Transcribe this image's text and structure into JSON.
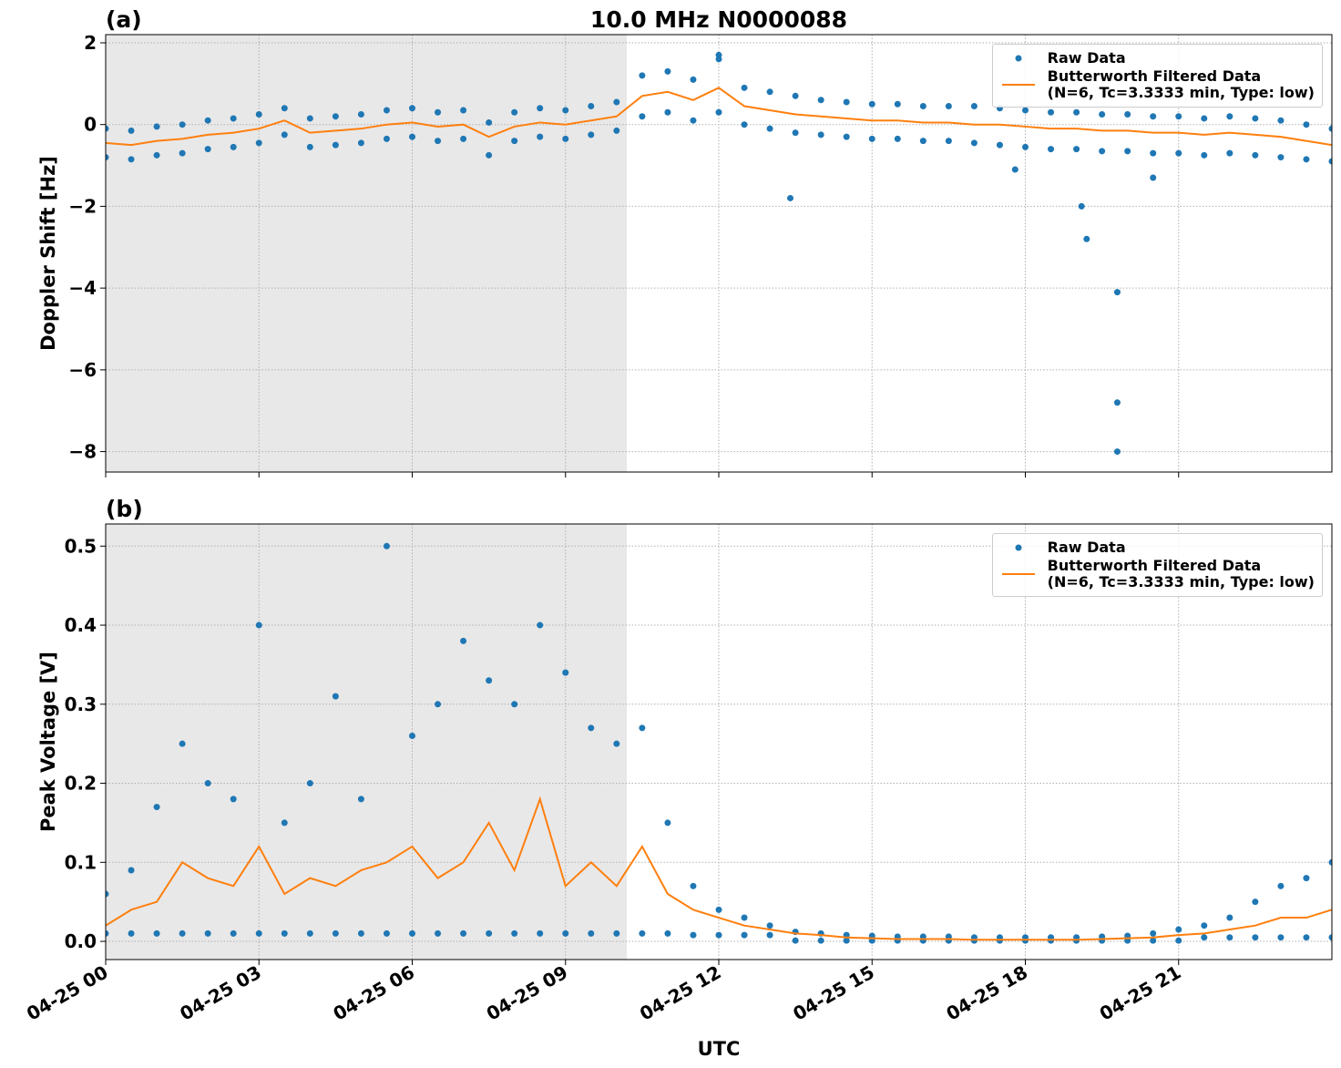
{
  "chart_data": [
    {
      "type": "scatter",
      "title": "10.0 MHz N0000088",
      "panel_label": "(a)",
      "ylabel": "Doppler Shift [Hz]",
      "xlim": [
        0,
        24
      ],
      "xticks": [
        0,
        3,
        6,
        9,
        12,
        15,
        18,
        21
      ],
      "ylim": [
        -8.5,
        2.2
      ],
      "yticks": [
        {
          "value": -8,
          "label": "−8"
        },
        {
          "value": -6,
          "label": "−6"
        },
        {
          "value": -4,
          "label": "−4"
        },
        {
          "value": -2,
          "label": "−2"
        },
        0,
        2
      ],
      "grid": true,
      "shade_xlim": [
        0,
        10.2
      ],
      "legend": "upper right",
      "series": [
        {
          "name": "Raw Data",
          "mode": "markers",
          "color": "#1f77b4",
          "x": [
            0,
            0.5,
            1,
            1.5,
            2,
            2.5,
            3,
            3.5,
            4,
            4.5,
            5,
            5.5,
            6,
            6.5,
            7,
            7.5,
            8,
            8.5,
            9,
            9.5,
            10,
            10.5,
            11,
            11.5,
            12,
            12.5,
            13,
            13.5,
            14,
            14.5,
            15,
            15.5,
            16,
            16.5,
            17,
            17.5,
            18,
            18.5,
            19,
            19.5,
            20,
            20.5,
            21,
            21.5,
            22,
            22.5,
            23,
            23.5,
            24,
            0,
            0.5,
            1,
            1.5,
            2,
            2.5,
            3,
            3.5,
            4,
            4.5,
            5,
            5.5,
            6,
            6.5,
            7,
            7.5,
            8,
            8.5,
            9,
            9.5,
            10,
            10.5,
            11,
            11.5,
            12,
            12.5,
            13,
            13.5,
            14,
            14.5,
            15,
            15.5,
            16,
            16.5,
            17,
            17.5,
            18,
            18.5,
            19,
            19.5,
            20,
            20.5,
            21,
            21.5,
            22,
            22.5,
            23,
            23.5,
            24,
            13.4,
            19.2,
            19.8,
            19.8,
            19.8,
            19.1,
            17.8,
            20.5,
            12.0
          ],
          "values": [
            -0.1,
            -0.15,
            -0.05,
            0,
            0.1,
            0.15,
            0.25,
            0.4,
            0.15,
            0.2,
            0.25,
            0.35,
            0.4,
            0.3,
            0.35,
            0.05,
            0.3,
            0.4,
            0.35,
            0.45,
            0.55,
            1.2,
            1.3,
            1.1,
            1.6,
            0.9,
            0.8,
            0.7,
            0.6,
            0.55,
            0.5,
            0.5,
            0.45,
            0.45,
            0.45,
            0.4,
            0.35,
            0.3,
            0.3,
            0.25,
            0.25,
            0.2,
            0.2,
            0.15,
            0.2,
            0.15,
            0.1,
            0,
            -0.1,
            -0.8,
            -0.85,
            -0.75,
            -0.7,
            -0.6,
            -0.55,
            -0.45,
            -0.25,
            -0.55,
            -0.5,
            -0.45,
            -0.35,
            -0.3,
            -0.4,
            -0.35,
            -0.75,
            -0.4,
            -0.3,
            -0.35,
            -0.25,
            -0.15,
            0.2,
            0.3,
            0.1,
            0.3,
            0,
            -0.1,
            -0.2,
            -0.25,
            -0.3,
            -0.35,
            -0.35,
            -0.4,
            -0.4,
            -0.45,
            -0.5,
            -0.55,
            -0.6,
            -0.6,
            -0.65,
            -0.65,
            -0.7,
            -0.7,
            -0.75,
            -0.7,
            -0.75,
            -0.8,
            -0.85,
            -0.9,
            -1.8,
            -2.8,
            -4.1,
            -6.8,
            -8.0,
            -2.0,
            -1.1,
            -1.3,
            1.7
          ]
        },
        {
          "name": "Butterworth Filtered Data\n(N=6, Tc=3.3333 min, Type: low)",
          "mode": "line",
          "color": "#ff7f0e",
          "x": [
            0,
            0.5,
            1,
            1.5,
            2,
            2.5,
            3,
            3.5,
            4,
            4.5,
            5,
            5.5,
            6,
            6.5,
            7,
            7.5,
            8,
            8.5,
            9,
            9.5,
            10,
            10.5,
            11,
            11.5,
            12,
            12.5,
            13,
            13.5,
            14,
            14.5,
            15,
            15.5,
            16,
            16.5,
            17,
            17.5,
            18,
            18.5,
            19,
            19.5,
            20,
            20.5,
            21,
            21.5,
            22,
            22.5,
            23,
            23.5,
            24
          ],
          "values": [
            -0.45,
            -0.5,
            -0.4,
            -0.35,
            -0.25,
            -0.2,
            -0.1,
            0.1,
            -0.2,
            -0.15,
            -0.1,
            0.0,
            0.05,
            -0.05,
            0.0,
            -0.3,
            -0.05,
            0.05,
            0.0,
            0.1,
            0.2,
            0.7,
            0.8,
            0.6,
            0.9,
            0.45,
            0.35,
            0.25,
            0.2,
            0.15,
            0.1,
            0.1,
            0.05,
            0.05,
            0.0,
            0.0,
            -0.05,
            -0.1,
            -0.1,
            -0.15,
            -0.15,
            -0.2,
            -0.2,
            -0.25,
            -0.2,
            -0.25,
            -0.3,
            -0.4,
            -0.5
          ]
        }
      ]
    },
    {
      "type": "scatter",
      "panel_label": "(b)",
      "ylabel": "Peak Voltage [V]",
      "xlabel": "UTC",
      "xlim": [
        0,
        24
      ],
      "xticks": [
        {
          "value": 0,
          "label": "04-25 00"
        },
        {
          "value": 3,
          "label": "04-25 03"
        },
        {
          "value": 6,
          "label": "04-25 06"
        },
        {
          "value": 9,
          "label": "04-25 09"
        },
        {
          "value": 12,
          "label": "04-25 12"
        },
        {
          "value": 15,
          "label": "04-25 15"
        },
        {
          "value": 18,
          "label": "04-25 18"
        },
        {
          "value": 21,
          "label": "04-25 21"
        }
      ],
      "ylim": [
        -0.023,
        0.528
      ],
      "yticks": [
        {
          "value": 0,
          "label": "0.0"
        },
        0.1,
        0.2,
        0.3,
        0.4,
        0.5
      ],
      "grid": true,
      "shade_xlim": [
        0,
        10.2
      ],
      "legend": "upper right",
      "series": [
        {
          "name": "Raw Data",
          "mode": "markers",
          "color": "#1f77b4",
          "x": [
            0,
            0.5,
            1,
            1.5,
            2,
            2.5,
            3,
            3.5,
            4,
            4.5,
            5,
            5.5,
            6,
            6.5,
            7,
            7.5,
            8,
            8.5,
            9,
            9.5,
            10,
            10.5,
            11,
            11.5,
            12,
            12.5,
            13,
            13.5,
            14,
            14.5,
            15,
            15.5,
            16,
            16.5,
            17,
            17.5,
            18,
            18.5,
            19,
            19.5,
            20,
            20.5,
            21,
            21.5,
            22,
            22.5,
            23,
            23.5,
            24,
            0,
            0.5,
            1,
            1.5,
            2,
            2.5,
            3,
            3.5,
            4,
            4.5,
            5,
            5.5,
            6,
            6.5,
            7,
            7.5,
            8,
            8.5,
            9,
            9.5,
            10,
            10.5,
            11,
            11.5,
            12,
            12.5,
            13,
            13.5,
            14,
            14.5,
            15,
            15.5,
            16,
            16.5,
            17,
            17.5,
            18,
            18.5,
            19,
            19.5,
            20,
            20.5,
            21,
            21.5,
            22,
            22.5,
            23,
            23.5,
            24
          ],
          "values": [
            0.06,
            0.09,
            0.17,
            0.25,
            0.2,
            0.18,
            0.4,
            0.15,
            0.2,
            0.31,
            0.18,
            0.5,
            0.26,
            0.3,
            0.38,
            0.33,
            0.3,
            0.4,
            0.34,
            0.27,
            0.25,
            0.27,
            0.15,
            0.07,
            0.04,
            0.03,
            0.02,
            0.012,
            0.01,
            0.008,
            0.007,
            0.006,
            0.006,
            0.006,
            0.005,
            0.005,
            0.005,
            0.005,
            0.005,
            0.006,
            0.007,
            0.01,
            0.015,
            0.02,
            0.03,
            0.05,
            0.07,
            0.08,
            0.1,
            0.01,
            0.01,
            0.01,
            0.01,
            0.01,
            0.01,
            0.01,
            0.01,
            0.01,
            0.01,
            0.01,
            0.01,
            0.01,
            0.01,
            0.01,
            0.01,
            0.01,
            0.01,
            0.01,
            0.01,
            0.01,
            0.01,
            0.01,
            0.008,
            0.008,
            0.008,
            0.008,
            0.001,
            0.001,
            0.001,
            0.001,
            0.001,
            0.001,
            0.001,
            0.001,
            0.001,
            0.001,
            0.001,
            0.001,
            0.001,
            0.001,
            0.001,
            0.001,
            0.005,
            0.005,
            0.005,
            0.005,
            0.005,
            0.005
          ]
        },
        {
          "name": "Butterworth Filtered Data\n(N=6, Tc=3.3333 min, Type: low)",
          "mode": "line",
          "color": "#ff7f0e",
          "x": [
            0,
            0.5,
            1,
            1.5,
            2,
            2.5,
            3,
            3.5,
            4,
            4.5,
            5,
            5.5,
            6,
            6.5,
            7,
            7.5,
            8,
            8.5,
            9,
            9.5,
            10,
            10.5,
            11,
            11.5,
            12,
            12.5,
            13,
            13.5,
            14,
            14.5,
            15,
            15.5,
            16,
            16.5,
            17,
            17.5,
            18,
            18.5,
            19,
            19.5,
            20,
            20.5,
            21,
            21.5,
            22,
            22.5,
            23,
            23.5,
            24
          ],
          "values": [
            0.02,
            0.04,
            0.05,
            0.1,
            0.08,
            0.07,
            0.12,
            0.06,
            0.08,
            0.07,
            0.09,
            0.1,
            0.12,
            0.08,
            0.1,
            0.15,
            0.09,
            0.18,
            0.07,
            0.1,
            0.07,
            0.12,
            0.06,
            0.04,
            0.03,
            0.02,
            0.015,
            0.01,
            0.008,
            0.005,
            0.004,
            0.003,
            0.003,
            0.003,
            0.002,
            0.002,
            0.002,
            0.002,
            0.002,
            0.003,
            0.004,
            0.005,
            0.008,
            0.01,
            0.015,
            0.02,
            0.03,
            0.03,
            0.04
          ]
        }
      ]
    }
  ]
}
